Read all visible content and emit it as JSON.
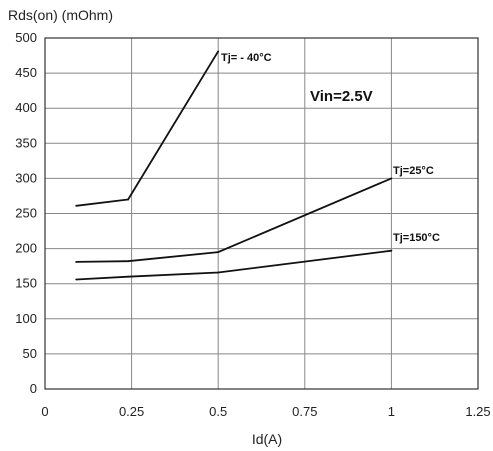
{
  "chart_data": {
    "type": "line",
    "xlabel": "Id(A)",
    "ylabel": "Rds(on) (mOhm)",
    "xlim": [
      0,
      1.25
    ],
    "ylim": [
      0,
      500
    ],
    "x_ticks": [
      "0",
      "0.25",
      "0.5",
      "0.75",
      "1",
      "1.25"
    ],
    "y_ticks": [
      "0",
      "50",
      "100",
      "150",
      "200",
      "250",
      "300",
      "350",
      "400",
      "450",
      "500"
    ],
    "grid": "vertical-and-horizontal",
    "annotation": "Vin=2.5V",
    "series": [
      {
        "name": "Tj= - 40°C",
        "points": [
          [
            0.09,
            261
          ],
          [
            0.24,
            270
          ],
          [
            0.5,
            481
          ]
        ]
      },
      {
        "name": "Tj=25°C",
        "points": [
          [
            0.09,
            181
          ],
          [
            0.24,
            182
          ],
          [
            0.5,
            195
          ],
          [
            1.0,
            300
          ]
        ]
      },
      {
        "name": "Tj=150°C",
        "points": [
          [
            0.09,
            156
          ],
          [
            0.24,
            160
          ],
          [
            0.5,
            166
          ],
          [
            1.0,
            197
          ]
        ]
      }
    ]
  }
}
